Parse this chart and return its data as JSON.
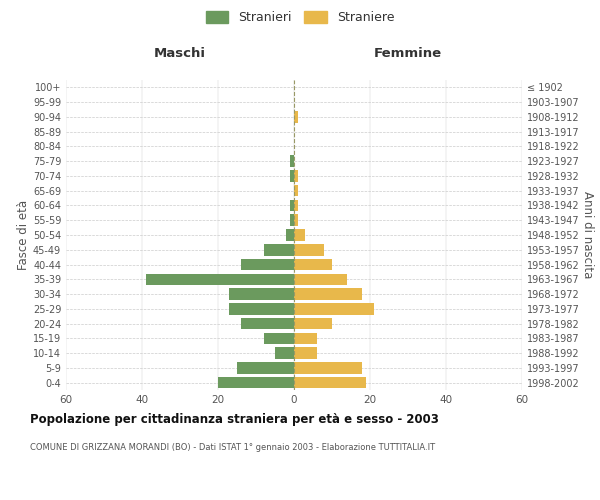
{
  "age_groups": [
    "0-4",
    "5-9",
    "10-14",
    "15-19",
    "20-24",
    "25-29",
    "30-34",
    "35-39",
    "40-44",
    "45-49",
    "50-54",
    "55-59",
    "60-64",
    "65-69",
    "70-74",
    "75-79",
    "80-84",
    "85-89",
    "90-94",
    "95-99",
    "100+"
  ],
  "birth_years": [
    "1998-2002",
    "1993-1997",
    "1988-1992",
    "1983-1987",
    "1978-1982",
    "1973-1977",
    "1968-1972",
    "1963-1967",
    "1958-1962",
    "1953-1957",
    "1948-1952",
    "1943-1947",
    "1938-1942",
    "1933-1937",
    "1928-1932",
    "1923-1927",
    "1918-1922",
    "1913-1917",
    "1908-1912",
    "1903-1907",
    "≤ 1902"
  ],
  "maschi": [
    20,
    15,
    5,
    8,
    14,
    17,
    17,
    39,
    14,
    8,
    2,
    1,
    1,
    0,
    1,
    1,
    0,
    0,
    0,
    0,
    0
  ],
  "femmine": [
    19,
    18,
    6,
    6,
    10,
    21,
    18,
    14,
    10,
    8,
    3,
    1,
    1,
    1,
    1,
    0,
    0,
    0,
    1,
    0,
    0
  ],
  "color_maschi": "#6b9a5e",
  "color_femmine": "#e8b84b",
  "title": "Popolazione per cittadinanza straniera per età e sesso - 2003",
  "subtitle": "COMUNE DI GRIZZANA MORANDI (BO) - Dati ISTAT 1° gennaio 2003 - Elaborazione TUTTITALIA.IT",
  "ylabel_left": "Fasce di età",
  "ylabel_right": "Anni di nascita",
  "xlabel_left": "Maschi",
  "xlabel_right": "Femmine",
  "legend_maschi": "Stranieri",
  "legend_femmine": "Straniere",
  "xlim": 60,
  "bg_color": "#ffffff",
  "grid_color": "#cccccc",
  "dashed_line_color": "#999966"
}
